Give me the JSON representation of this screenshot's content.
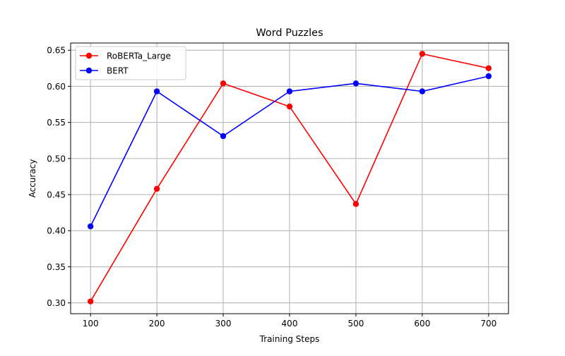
{
  "chart_data": {
    "type": "line",
    "title": "Word Puzzles",
    "xlabel": "Training Steps",
    "ylabel": "Accuracy",
    "x": [
      100,
      200,
      300,
      400,
      500,
      600,
      700
    ],
    "xticks": [
      "100",
      "200",
      "300",
      "400",
      "500",
      "600",
      "700"
    ],
    "yticks": [
      "0.30",
      "0.35",
      "0.40",
      "0.45",
      "0.50",
      "0.55",
      "0.60",
      "0.65"
    ],
    "xlim": [
      70,
      730
    ],
    "ylim": [
      0.285,
      0.66
    ],
    "grid": true,
    "legend_position": "top-left",
    "series": [
      {
        "name": "RoBERTa_Large",
        "color": "#ff0000",
        "values": [
          0.302,
          0.458,
          0.604,
          0.572,
          0.437,
          0.645,
          0.625
        ]
      },
      {
        "name": "BERT",
        "color": "#0000ff",
        "values": [
          0.406,
          0.593,
          0.531,
          0.593,
          0.604,
          0.593,
          0.614
        ]
      }
    ]
  }
}
